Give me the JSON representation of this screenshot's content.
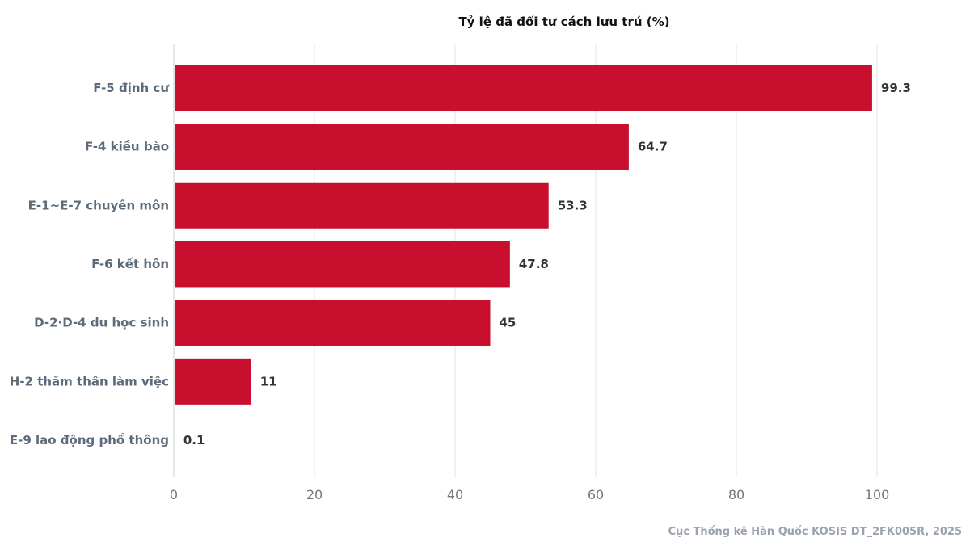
{
  "chart_data": {
    "type": "bar",
    "orientation": "horizontal",
    "title": "Tỷ lệ đã đổi tư cách lưu trú (%)",
    "xlabel": "",
    "ylabel": "",
    "categories": [
      "F-5 định cư",
      "F-4 kiều bào",
      "E-1~E-7 chuyên môn",
      "F-6 kết hôn",
      "D-2·D-4 du học sinh",
      "H-2 thăm thân làm việc",
      "E-9 lao động phổ thông"
    ],
    "values": [
      99.3,
      64.7,
      53.3,
      47.8,
      45,
      11,
      0.1
    ],
    "data_labels": [
      "99.3",
      "64.7",
      "53.3",
      "47.8",
      "45",
      "11",
      "0.1"
    ],
    "xlim": [
      0,
      100
    ],
    "x_ticks": [
      0,
      20,
      40,
      60,
      80,
      100
    ],
    "grid": true,
    "colors": {
      "bar": "#c8102e",
      "grid": "#e3e3e3",
      "category_label": "#5b6b7b",
      "value_label": "#333333",
      "tick_label": "#777777",
      "source": "#9aa3ad"
    }
  },
  "source_note": "Cục Thống kê Hàn Quốc KOSIS DT_2FK005R, 2025"
}
